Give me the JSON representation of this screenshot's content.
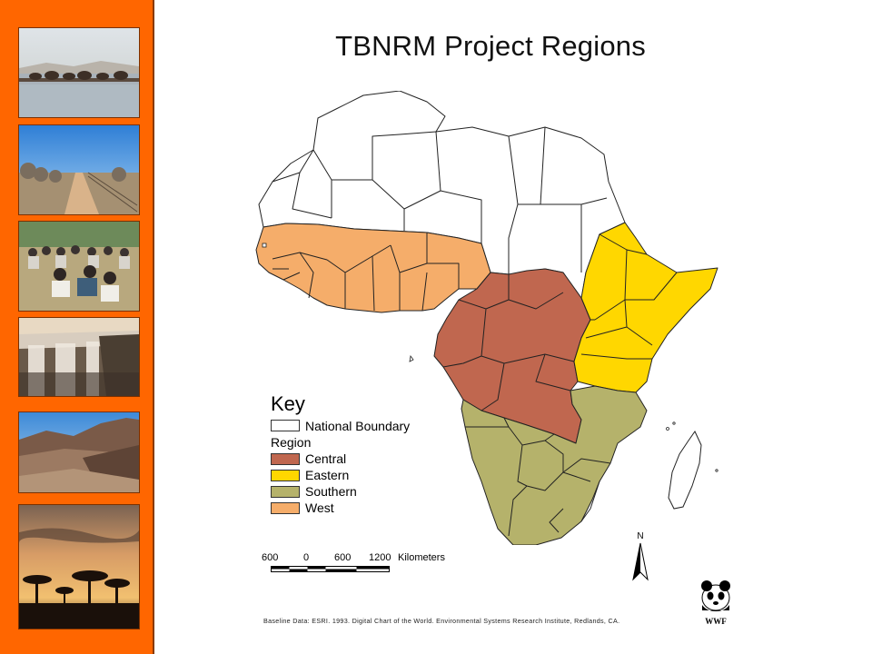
{
  "title": "TBNRM Project Regions",
  "key": {
    "heading": "Key",
    "national_boundary": "National Boundary",
    "region_heading": "Region",
    "regions": [
      {
        "label": "Central",
        "color": "#c0674f"
      },
      {
        "label": "Eastern",
        "color": "#ffd700"
      },
      {
        "label": "Southern",
        "color": "#b5b26b"
      },
      {
        "label": "West",
        "color": "#f5ad6a"
      }
    ],
    "boundary_color": "#ffffff"
  },
  "scale": {
    "labels": [
      "600",
      "0",
      "600",
      "1200",
      "Kilometers"
    ]
  },
  "north_label": "N",
  "credit": "Baseline Data: ESRI. 1993. Digital Chart of the World. Environmental Systems Research Institute, Redlands, CA.",
  "logo_text": "WWF",
  "sidebar": {
    "accent": "#ff6600",
    "photos": [
      "elephants-at-waterhole-photo",
      "dirt-road-fence-photo",
      "community-meeting-photo",
      "waterfall-gorge-photo",
      "mountain-valley-photo",
      "acacia-sunset-photo"
    ]
  }
}
